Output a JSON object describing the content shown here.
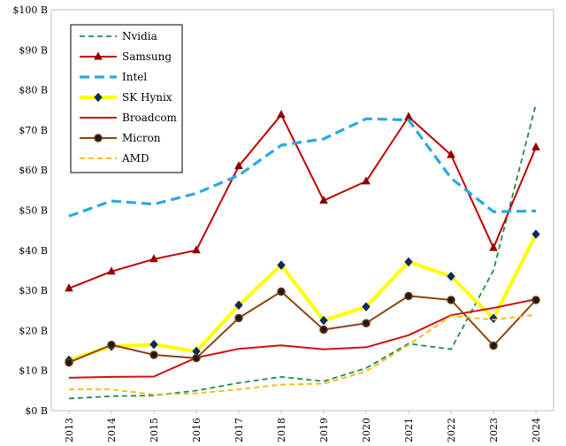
{
  "chart_data": {
    "type": "line",
    "title": "",
    "xlabel": "",
    "ylabel": "",
    "x": [
      "2013",
      "2014",
      "2015",
      "2016",
      "2017",
      "2018",
      "2019",
      "2020",
      "2021",
      "2022",
      "2023",
      "2024"
    ],
    "ylim": [
      0,
      100
    ],
    "y_ticks": [
      0,
      10,
      20,
      30,
      40,
      50,
      60,
      70,
      80,
      90,
      100
    ],
    "y_tick_labels": [
      "$0 B",
      "$10 B",
      "$20 B",
      "$30 B",
      "$40 B",
      "$50 B",
      "$60 B",
      "$70 B",
      "$80 B",
      "$90 B",
      "$100 B"
    ],
    "grid": false,
    "legend_position": "top-left",
    "series": [
      {
        "name": "Nvidia",
        "color": "#1e8c4e",
        "style": "dashed-thin",
        "marker": "none",
        "values": [
          3.0,
          3.6,
          3.8,
          5.0,
          6.9,
          8.4,
          7.3,
          10.6,
          16.7,
          15.3,
          35.0,
          76.5
        ]
      },
      {
        "name": "Samsung",
        "color": "#c00000",
        "style": "solid",
        "marker": "triangle",
        "values": [
          30.5,
          34.7,
          37.8,
          40.0,
          61.0,
          73.8,
          52.4,
          57.2,
          73.3,
          63.8,
          40.6,
          65.7
        ]
      },
      {
        "name": "Intel",
        "color": "#29a9e1",
        "style": "dashed-thick",
        "marker": "none",
        "values": [
          48.5,
          52.3,
          51.5,
          54.2,
          58.7,
          66.2,
          67.8,
          72.8,
          72.5,
          58.0,
          49.6,
          49.8
        ]
      },
      {
        "name": "SK Hynix",
        "color": "#ffff00",
        "style": "solid-thick",
        "marker": "diamond",
        "values": [
          12.6,
          16.0,
          16.5,
          14.8,
          26.3,
          36.3,
          22.5,
          25.9,
          37.1,
          33.5,
          23.0,
          44.0
        ]
      },
      {
        "name": "Broadcom",
        "color": "#d01010",
        "style": "solid",
        "marker": "none",
        "values": [
          8.2,
          8.4,
          8.5,
          13.2,
          15.4,
          16.3,
          15.3,
          15.8,
          18.8,
          23.8,
          25.6,
          27.8
        ]
      },
      {
        "name": "Micron",
        "color": "#8b4513",
        "style": "solid",
        "marker": "circle",
        "values": [
          12.0,
          16.4,
          13.9,
          13.1,
          23.1,
          29.7,
          20.2,
          21.8,
          28.6,
          27.6,
          16.2,
          27.6
        ]
      },
      {
        "name": "AMD",
        "color": "#f5b800",
        "style": "dashed-thin",
        "marker": "none",
        "values": [
          5.3,
          5.3,
          4.0,
          4.3,
          5.3,
          6.5,
          6.7,
          9.8,
          16.4,
          23.6,
          22.7,
          23.9
        ]
      }
    ]
  }
}
